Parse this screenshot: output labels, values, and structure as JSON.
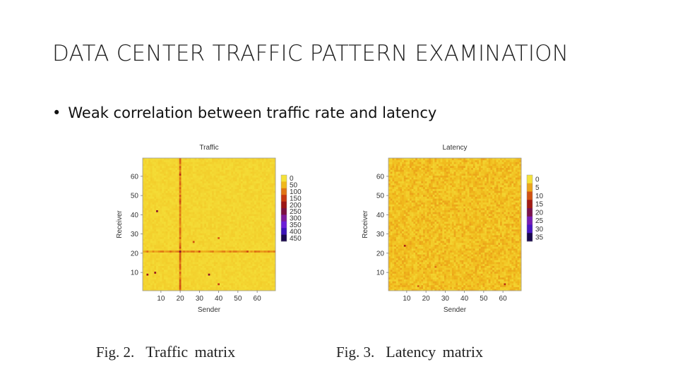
{
  "slide": {
    "title": "DATA CENTER TRAFFIC PATTERN EXAMINATION",
    "bullet": "Weak correlation between traffic rate and latency"
  },
  "figures": [
    {
      "caption_number": "Fig. 2.",
      "caption_label": "Traffic  matrix"
    },
    {
      "caption_number": "Fig. 3.",
      "caption_label": "Latency  matrix"
    }
  ],
  "chart_data": [
    {
      "type": "heatmap",
      "title": "Traffic",
      "xlabel": "Sender",
      "ylabel": "Receiver",
      "xlim": [
        1,
        69
      ],
      "ylim": [
        1,
        69
      ],
      "x_ticks": [
        10,
        20,
        30,
        40,
        50,
        60
      ],
      "y_ticks": [
        10,
        20,
        30,
        40,
        50,
        60
      ],
      "colorbar_ticks": [
        "0",
        "50",
        "100",
        "150",
        "200",
        "250",
        "300",
        "350",
        "400",
        "450"
      ],
      "colorbar_max": 450,
      "colors": [
        "#f5e23a",
        "#f0b81c",
        "#e07415",
        "#c63810",
        "#9c1515",
        "#7a1040",
        "#7e1a9a",
        "#6b1ed8",
        "#3b12b8",
        "#1a0850"
      ],
      "background_level": 15,
      "stripes": [
        {
          "axis": "sender",
          "at": 20,
          "level": 120
        },
        {
          "axis": "receiver",
          "at": 21,
          "level": 95
        }
      ],
      "hotspots": [
        {
          "sender": 8,
          "receiver": 42,
          "level": 230
        },
        {
          "sender": 3,
          "receiver": 9,
          "level": 200
        },
        {
          "sender": 7,
          "receiver": 10,
          "level": 210
        },
        {
          "sender": 35,
          "receiver": 9,
          "level": 220
        },
        {
          "sender": 40,
          "receiver": 4,
          "level": 150
        },
        {
          "sender": 20,
          "receiver": 21,
          "level": 230
        },
        {
          "sender": 20,
          "receiver": 61,
          "level": 170
        },
        {
          "sender": 27,
          "receiver": 26,
          "level": 130
        },
        {
          "sender": 30,
          "receiver": 21,
          "level": 140
        },
        {
          "sender": 55,
          "receiver": 21,
          "level": 140
        },
        {
          "sender": 40,
          "receiver": 28,
          "level": 120
        }
      ]
    },
    {
      "type": "heatmap",
      "title": "Latency",
      "xlabel": "Sender",
      "ylabel": "Receiver",
      "xlim": [
        1,
        69
      ],
      "ylim": [
        1,
        69
      ],
      "x_ticks": [
        10,
        20,
        30,
        40,
        50,
        60
      ],
      "y_ticks": [
        10,
        20,
        30,
        40,
        50,
        60
      ],
      "colorbar_ticks": [
        "0",
        "5",
        "10",
        "15",
        "20",
        "25",
        "30",
        "35"
      ],
      "colorbar_max": 35,
      "colors": [
        "#f5e23a",
        "#f0b81c",
        "#e07415",
        "#c63810",
        "#9c1515",
        "#7a1040",
        "#7e1a9a",
        "#6b1ed8",
        "#3b12b8",
        "#1a0850"
      ],
      "background_level": 3,
      "stripes": [],
      "hotspots": [
        {
          "sender": 9,
          "receiver": 24,
          "level": 14
        },
        {
          "sender": 61,
          "receiver": 4,
          "level": 13
        },
        {
          "sender": 16,
          "receiver": 3,
          "level": 9
        },
        {
          "sender": 25,
          "receiver": 13,
          "level": 8
        }
      ]
    }
  ]
}
